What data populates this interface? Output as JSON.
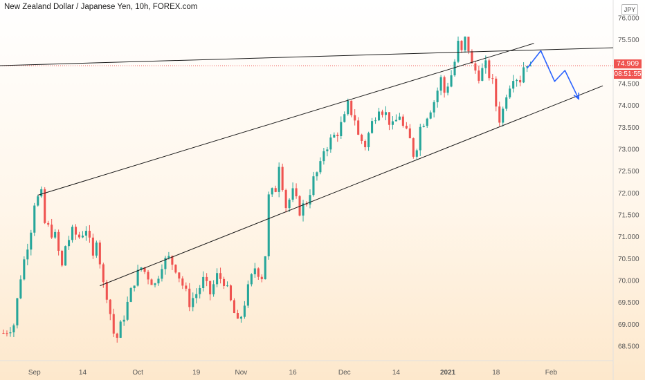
{
  "chart_data": {
    "type": "candlestick",
    "title": "New Zealand Dollar / Japanese Yen, 10h, FOREX.com",
    "unit": "JPY",
    "last_price": "74.909",
    "countdown": "08:51:55",
    "ylim": [
      68.2,
      76.25
    ],
    "y_ticks": [
      "76.000",
      "75.500",
      "75.000",
      "74.500",
      "74.000",
      "73.500",
      "73.000",
      "72.500",
      "72.000",
      "71.500",
      "71.000",
      "70.500",
      "70.000",
      "69.500",
      "69.000",
      "68.500"
    ],
    "x_ticks": [
      {
        "label": "Sep",
        "idx": 9
      },
      {
        "label": "14",
        "idx": 23
      },
      {
        "label": "Oct",
        "idx": 39
      },
      {
        "label": "19",
        "idx": 56
      },
      {
        "label": "Nov",
        "idx": 69
      },
      {
        "label": "16",
        "idx": 84
      },
      {
        "label": "Dec",
        "idx": 99
      },
      {
        "label": "14",
        "idx": 114
      },
      {
        "label": "2021",
        "idx": 129,
        "bold": true
      },
      {
        "label": "18",
        "idx": 143
      },
      {
        "label": "Feb",
        "idx": 159
      }
    ],
    "x_range": [
      -1,
      177
    ],
    "path": [
      [
        0,
        68.8
      ],
      [
        3,
        69.0
      ],
      [
        5,
        70.1
      ],
      [
        8,
        71.2
      ],
      [
        9,
        71.8
      ],
      [
        11,
        71.95
      ],
      [
        12,
        71.3
      ],
      [
        15,
        71.0
      ],
      [
        17,
        70.3
      ],
      [
        18,
        70.8
      ],
      [
        20,
        71.1
      ],
      [
        22,
        71.0
      ],
      [
        24,
        71.2
      ],
      [
        26,
        70.5
      ],
      [
        27,
        71.0
      ],
      [
        29,
        69.9
      ],
      [
        30,
        69.7
      ],
      [
        32,
        68.8
      ],
      [
        33,
        68.7
      ],
      [
        35,
        69.2
      ],
      [
        38,
        70.0
      ],
      [
        40,
        70.3
      ],
      [
        42,
        70.1
      ],
      [
        44,
        69.9
      ],
      [
        46,
        70.4
      ],
      [
        48,
        70.5
      ],
      [
        50,
        70.3
      ],
      [
        52,
        69.9
      ],
      [
        54,
        69.5
      ],
      [
        56,
        69.7
      ],
      [
        58,
        70.0
      ],
      [
        60,
        69.7
      ],
      [
        62,
        70.1
      ],
      [
        64,
        70.0
      ],
      [
        66,
        69.5
      ],
      [
        68,
        69.0
      ],
      [
        69,
        69.2
      ],
      [
        71,
        69.8
      ],
      [
        73,
        70.3
      ],
      [
        75,
        70.1
      ],
      [
        76,
        70.6
      ],
      [
        77,
        71.9
      ],
      [
        79,
        72.1
      ],
      [
        80,
        72.7
      ],
      [
        81,
        72.2
      ],
      [
        82,
        71.7
      ],
      [
        84,
        72.0
      ],
      [
        86,
        71.6
      ],
      [
        88,
        71.8
      ],
      [
        90,
        72.3
      ],
      [
        92,
        72.6
      ],
      [
        93,
        73.0
      ],
      [
        95,
        73.2
      ],
      [
        97,
        73.4
      ],
      [
        99,
        73.7
      ],
      [
        100,
        74.0
      ],
      [
        102,
        73.7
      ],
      [
        103,
        73.3
      ],
      [
        105,
        73.1
      ],
      [
        107,
        73.6
      ],
      [
        109,
        74.0
      ],
      [
        111,
        73.8
      ],
      [
        113,
        73.5
      ],
      [
        115,
        73.8
      ],
      [
        116,
        73.5
      ],
      [
        118,
        73.2
      ],
      [
        119,
        72.9
      ],
      [
        120,
        73.1
      ],
      [
        121,
        73.5
      ],
      [
        123,
        73.8
      ],
      [
        125,
        74.1
      ],
      [
        127,
        74.6
      ],
      [
        128,
        74.3
      ],
      [
        130,
        74.7
      ],
      [
        131,
        75.0
      ],
      [
        132,
        75.4
      ],
      [
        133,
        75.2
      ],
      [
        134,
        75.5
      ],
      [
        135,
        75.3
      ],
      [
        136,
        74.9
      ],
      [
        138,
        74.7
      ],
      [
        140,
        74.9
      ],
      [
        142,
        74.5
      ],
      [
        143,
        74.0
      ],
      [
        144,
        73.7
      ],
      [
        145,
        73.9
      ],
      [
        146,
        74.3
      ],
      [
        148,
        74.7
      ],
      [
        150,
        74.6
      ],
      [
        151,
        74.9
      ],
      [
        152,
        75.0
      ],
      [
        153,
        74.91
      ]
    ],
    "trendlines": [
      {
        "name": "resistance",
        "x1": -1,
        "y1": 74.91,
        "x2": 177,
        "y2": 75.32
      },
      {
        "name": "upper-channel",
        "x1": 10,
        "y1": 71.95,
        "x2": 154,
        "y2": 75.42
      },
      {
        "name": "lower-channel",
        "x1": 28,
        "y1": 69.88,
        "x2": 174,
        "y2": 74.45
      }
    ],
    "projection": [
      [
        152,
        74.85
      ],
      [
        156,
        75.25
      ],
      [
        160,
        74.55
      ],
      [
        163,
        74.8
      ],
      [
        167,
        74.15
      ]
    ],
    "colors": {
      "up": "#26a69a",
      "down": "#ef5350",
      "projection": "#2962ff",
      "line": "#1a1a1a",
      "price_line": "#ef5350"
    }
  }
}
